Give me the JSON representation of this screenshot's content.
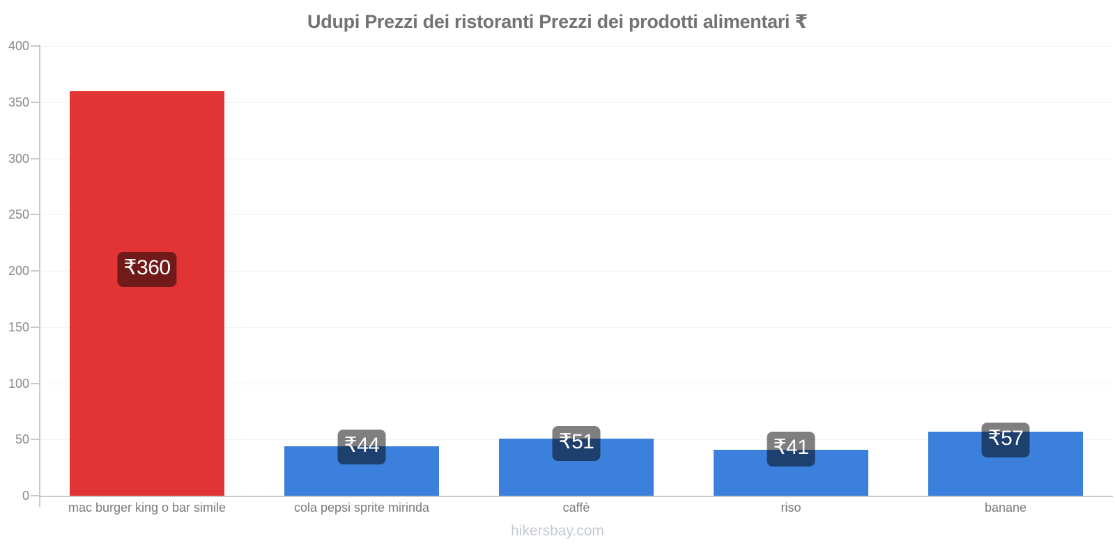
{
  "title": "Udupi Prezzi dei ristoranti Prezzi dei prodotti alimentari ₹",
  "footer": "hikersbay.com",
  "colors": {
    "restaurant_bar": "#e23434",
    "grocery_bar": "#3b80dc",
    "badge_bg": "rgba(0,0,0,0.5)",
    "axis": "#c9c9c9",
    "gridline": "#f2f2f2",
    "title_text": "#737373",
    "tick_text": "#8a8a8a",
    "category_text": "#7a7a7a",
    "footer_text": "#c5c9d2"
  },
  "chart_data": {
    "type": "bar",
    "title": "Udupi Prezzi dei ristoranti Prezzi dei prodotti alimentari ₹",
    "categories": [
      "mac burger king o bar simile",
      "cola pepsi sprite mirinda",
      "caffè",
      "riso",
      "banane"
    ],
    "values": [
      360,
      44,
      51,
      41,
      57
    ],
    "value_labels": [
      "₹360",
      "₹44",
      "₹51",
      "₹41",
      "₹57"
    ],
    "bar_colors": [
      "#e23434",
      "#3b80dc",
      "#3b80dc",
      "#3b80dc",
      "#3b80dc"
    ],
    "currency": "₹",
    "xlabel": "",
    "ylabel": "",
    "ylim": [
      0,
      400
    ],
    "y_ticks": [
      0,
      50,
      100,
      150,
      200,
      250,
      300,
      350,
      400
    ],
    "y_tick_labels": [
      "0",
      "50",
      "100",
      "150",
      "200",
      "250",
      "300",
      "350",
      "400"
    ],
    "grid": true,
    "legend": false
  }
}
